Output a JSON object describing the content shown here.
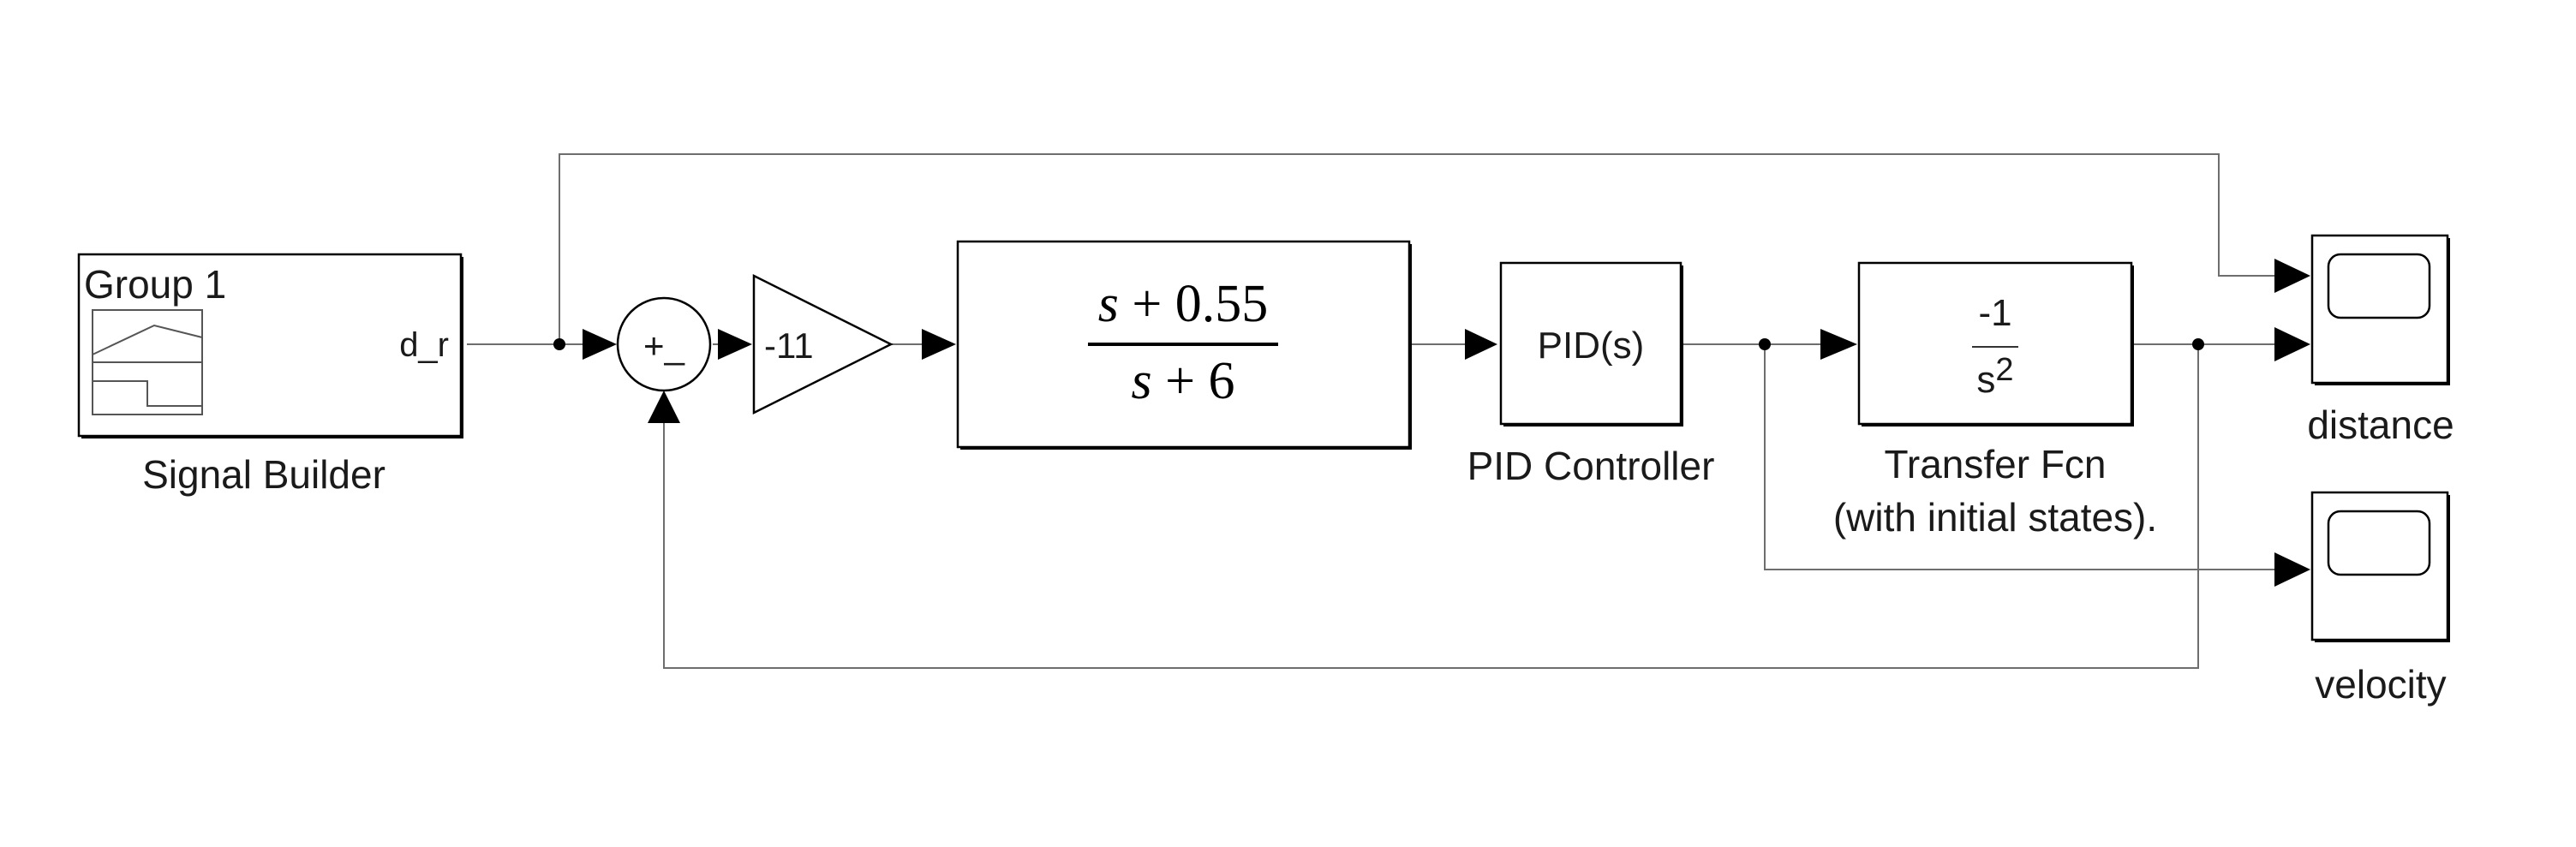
{
  "blocks": {
    "signal_builder": {
      "group_label": "Group 1",
      "port_label": "d_r",
      "name": "Signal Builder"
    },
    "sum": {
      "symbol": "+_"
    },
    "gain": {
      "value": "-11"
    },
    "lead_tf": {
      "num_var": "s",
      "num_rest": "+ 0.55",
      "den_var": "s",
      "den_rest": "+ 6"
    },
    "pid": {
      "text": "PID(s)",
      "name": "PID Controller"
    },
    "plant_tf": {
      "numerator": "-1",
      "den_base": "s",
      "den_exp": "2",
      "name_line1": "Transfer Fcn",
      "name_line2": "(with initial states)."
    },
    "scope_distance": {
      "name": "distance"
    },
    "scope_velocity": {
      "name": "velocity"
    }
  },
  "colors": {
    "block_stroke": "#000000",
    "wire": "#6e6e6e",
    "text": "#1a1a1a"
  }
}
